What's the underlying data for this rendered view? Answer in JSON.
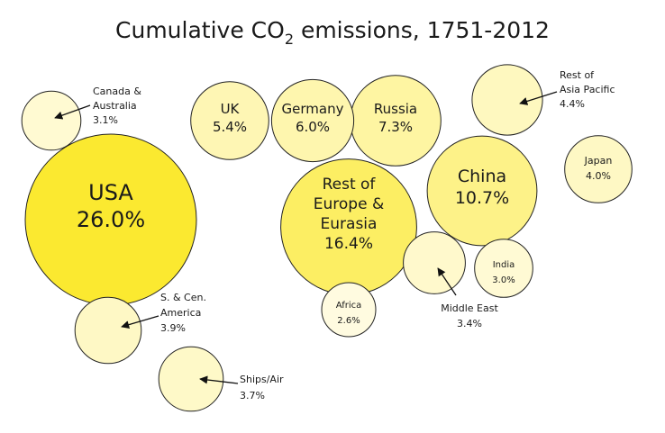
{
  "chart_data": {
    "type": "bubble",
    "title_main": "Cumulative CO",
    "title_sub": "2",
    "title_rest": " emissions, 1751-2012",
    "colors": {
      "low": "#fffbe0",
      "high": "#fbe930",
      "stroke": "#222222",
      "arrow": "#111111"
    },
    "items": [
      {
        "id": "usa",
        "name": "USA",
        "value": 26.0,
        "label": "26.0%",
        "size": "large"
      },
      {
        "id": "rest-of-europe-eurasia",
        "name_lines": [
          "Rest of",
          "Europe &",
          "Eurasia"
        ],
        "value": 16.4,
        "label": "16.4%",
        "size": "large"
      },
      {
        "id": "china",
        "name": "China",
        "value": 10.7,
        "label": "10.7%",
        "size": "large"
      },
      {
        "id": "russia",
        "name": "Russia",
        "value": 7.3,
        "label": "7.3%",
        "size": "medium"
      },
      {
        "id": "germany",
        "name": "Germany",
        "value": 6.0,
        "label": "6.0%",
        "size": "medium"
      },
      {
        "id": "uk",
        "name": "UK",
        "value": 5.4,
        "label": "5.4%",
        "size": "medium"
      },
      {
        "id": "rest-of-asia-pacific",
        "name_lines": [
          "Rest of",
          "Asia Pacific"
        ],
        "value": 4.4,
        "label": "4.4%",
        "size": "small",
        "external": true
      },
      {
        "id": "japan",
        "name": "Japan",
        "value": 4.0,
        "label": "4.0%",
        "size": "small"
      },
      {
        "id": "s-cen-america",
        "name_lines": [
          "S. & Cen.",
          "America"
        ],
        "value": 3.9,
        "label": "3.9%",
        "size": "small",
        "external": true
      },
      {
        "id": "ships-air",
        "name": "Ships/Air",
        "value": 3.7,
        "label": "3.7%",
        "size": "small",
        "external": true
      },
      {
        "id": "middle-east",
        "name": "Middle East",
        "value": 3.4,
        "label": "3.4%",
        "size": "small",
        "external": true
      },
      {
        "id": "canada-australia",
        "name_lines": [
          "Canada &",
          "Australia"
        ],
        "value": 3.1,
        "label": "3.1%",
        "size": "small",
        "external": true
      },
      {
        "id": "india",
        "name": "India",
        "value": 3.0,
        "label": "3.0%",
        "size": "tiny"
      },
      {
        "id": "africa",
        "name": "Africa",
        "value": 2.6,
        "label": "2.6%",
        "size": "tiny"
      }
    ]
  }
}
